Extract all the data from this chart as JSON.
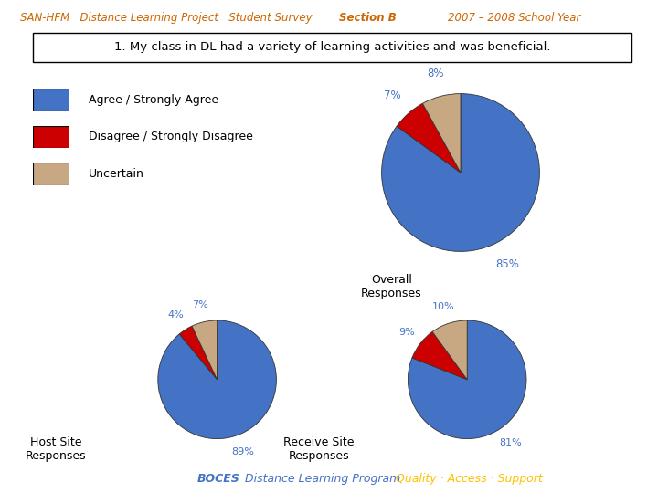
{
  "header_left": "SAN-HFM   Distance Learning Project   Student Survey",
  "header_section": "Section B",
  "header_right": "2007 – 2008 School Year",
  "question": "1. My class in DL had a variety of learning activities and was beneficial.",
  "legend_labels": [
    "Agree / Strongly Agree",
    "Disagree / Strongly Disagree",
    "Uncertain"
  ],
  "colors": [
    "#4472C4",
    "#CC0000",
    "#C8A882"
  ],
  "overall": {
    "values": [
      85,
      7,
      8
    ],
    "labels": [
      "85%",
      "7%",
      "8%"
    ],
    "title": "Overall\nResponses"
  },
  "host": {
    "values": [
      89,
      4,
      7
    ],
    "labels": [
      "89%",
      "4%",
      "7%"
    ],
    "title": "Host Site\nResponses"
  },
  "receive": {
    "values": [
      81,
      9,
      10
    ],
    "labels": [
      "81%",
      "9%",
      "10%"
    ],
    "title": "Receive Site\nResponses"
  },
  "footer_boces": "BOCES",
  "footer_dlp": "   Distance Learning Program",
  "footer_qas": "   Quality · Access · Support",
  "header_color": "#CC6600",
  "footer_boces_color": "#4472C4",
  "footer_dlp_color": "#4472C4",
  "footer_qas_color": "#FFC000",
  "pct_label_color": "#4472C4",
  "bg_color": "#FFFFFF"
}
